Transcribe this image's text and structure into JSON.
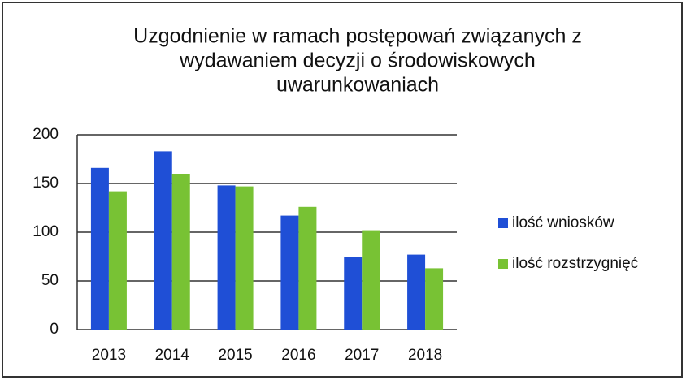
{
  "chart_data": {
    "type": "bar",
    "title": [
      "Uzgodnienie w ramach postępowań związanych z",
      "wydawaniem decyzji o środowiskowych",
      "uwarunkowaniach"
    ],
    "categories": [
      "2013",
      "2014",
      "2015",
      "2016",
      "2017",
      "2018"
    ],
    "series": [
      {
        "name": "ilość wniosków",
        "color": "#1f4fd6",
        "values": [
          166,
          183,
          148,
          117,
          75,
          77
        ]
      },
      {
        "name": "ilość rozstrzygnięć",
        "color": "#78c234",
        "values": [
          142,
          160,
          147,
          126,
          102,
          63
        ]
      }
    ],
    "ylim": [
      0,
      200
    ],
    "yticks": [
      0,
      50,
      100,
      150,
      200
    ],
    "grid": true,
    "legend": "right"
  }
}
